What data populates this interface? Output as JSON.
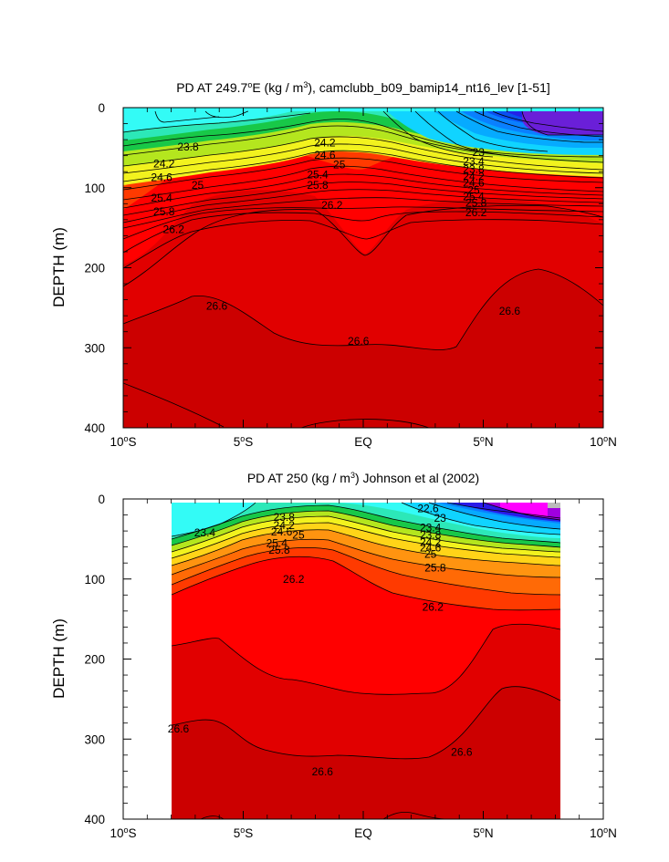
{
  "chart_data": [
    {
      "type": "contour",
      "title": "PD AT 249.7°E (kg / m³), camclubb_b09_bamip14_nt16_lev [1-51]",
      "title_parts": {
        "pre": "PD AT 249.7",
        "sup1": "o",
        "mid": "E (kg / m",
        "sup2": "3",
        "post": "), camclubb_b09_bamip14_nt16_lev [1-51]"
      },
      "xlabel": "",
      "ylabel": "DEPTH (m)",
      "x_ticks": [
        {
          "value": -10,
          "label_num": "10",
          "label_sup": "o",
          "label_hem": "S"
        },
        {
          "value": -5,
          "label_num": "5",
          "label_sup": "o",
          "label_hem": "S"
        },
        {
          "value": 0,
          "label_num": "EQ",
          "label_sup": "",
          "label_hem": ""
        },
        {
          "value": 5,
          "label_num": "5",
          "label_sup": "o",
          "label_hem": "N"
        },
        {
          "value": 10,
          "label_num": "10",
          "label_sup": "o",
          "label_hem": "N"
        }
      ],
      "y_ticks": [
        {
          "value": 0,
          "label": "0"
        },
        {
          "value": 100,
          "label": "100"
        },
        {
          "value": 200,
          "label": "200"
        },
        {
          "value": 300,
          "label": "300"
        },
        {
          "value": 400,
          "label": "400"
        }
      ],
      "xlim": [
        -10,
        10
      ],
      "ylim": [
        0,
        400
      ],
      "data_xlim": [
        -10,
        10
      ],
      "contour_levels": [
        22.6,
        22.8,
        23.0,
        23.2,
        23.4,
        23.6,
        23.8,
        24.0,
        24.2,
        24.4,
        24.6,
        24.8,
        25.0,
        25.2,
        25.4,
        25.6,
        25.8,
        26.0,
        26.2,
        26.4,
        26.6,
        26.8
      ],
      "fill_colors": [
        "#6a1fd8",
        "#2222e8",
        "#0a50f0",
        "#0a80ff",
        "#06aaff",
        "#10d4ff",
        "#33fbf6",
        "#2ce8b8",
        "#1ed780",
        "#18c848",
        "#5fd22a",
        "#b4e61e",
        "#f2f21e",
        "#ffd418",
        "#ffb414",
        "#ff9410",
        "#ff7408",
        "#ff5404",
        "#ff2a00",
        "#ff0000",
        "#e10000",
        "#cc0000"
      ],
      "labels": [
        {
          "text": "23.8",
          "x": -7.3,
          "y": 49
        },
        {
          "text": "24.2",
          "x": -8.3,
          "y": 70
        },
        {
          "text": "24.6",
          "x": -8.4,
          "y": 87
        },
        {
          "text": "25",
          "x": -6.9,
          "y": 97
        },
        {
          "text": "25.4",
          "x": -8.4,
          "y": 113
        },
        {
          "text": "25.8",
          "x": -8.3,
          "y": 130
        },
        {
          "text": "26.2",
          "x": -7.9,
          "y": 152
        },
        {
          "text": "24.2",
          "x": -1.6,
          "y": 44
        },
        {
          "text": "24.6",
          "x": -1.6,
          "y": 59
        },
        {
          "text": "25",
          "x": -1.0,
          "y": 71
        },
        {
          "text": "25.4",
          "x": -1.9,
          "y": 84
        },
        {
          "text": "25.8",
          "x": -1.9,
          "y": 97
        },
        {
          "text": "26.2",
          "x": -1.3,
          "y": 122
        },
        {
          "text": "23",
          "x": 4.8,
          "y": 56
        },
        {
          "text": "23.4",
          "x": 4.6,
          "y": 67
        },
        {
          "text": "23.8",
          "x": 4.6,
          "y": 77
        },
        {
          "text": "24.2",
          "x": 4.6,
          "y": 86
        },
        {
          "text": "24.6",
          "x": 4.6,
          "y": 94
        },
        {
          "text": "25",
          "x": 4.6,
          "y": 103
        },
        {
          "text": "25.4",
          "x": 4.6,
          "y": 111
        },
        {
          "text": "25.8",
          "x": 4.7,
          "y": 119
        },
        {
          "text": "26.2",
          "x": 4.7,
          "y": 131
        },
        {
          "text": "26.6",
          "x": -6.1,
          "y": 248
        },
        {
          "text": "26.6",
          "x": -0.2,
          "y": 292
        },
        {
          "text": "26.6",
          "x": 6.1,
          "y": 254
        }
      ]
    },
    {
      "type": "contour",
      "title": "PD AT 250 (kg / m³) Johnson et al (2002)",
      "title_parts": {
        "pre": "PD AT 250 (kg / m",
        "sup1": "3",
        "mid": ") Johnson et al (2002)",
        "sup2": "",
        "post": ""
      },
      "xlabel": "",
      "ylabel": "DEPTH (m)",
      "x_ticks": [
        {
          "value": -10,
          "label_num": "10",
          "label_sup": "o",
          "label_hem": "S"
        },
        {
          "value": -5,
          "label_num": "5",
          "label_sup": "o",
          "label_hem": "S"
        },
        {
          "value": 0,
          "label_num": "EQ",
          "label_sup": "",
          "label_hem": ""
        },
        {
          "value": 5,
          "label_num": "5",
          "label_sup": "o",
          "label_hem": "N"
        },
        {
          "value": 10,
          "label_num": "10",
          "label_sup": "o",
          "label_hem": "N"
        }
      ],
      "y_ticks": [
        {
          "value": 0,
          "label": "0"
        },
        {
          "value": 100,
          "label": "100"
        },
        {
          "value": 200,
          "label": "200"
        },
        {
          "value": 300,
          "label": "300"
        },
        {
          "value": 400,
          "label": "400"
        }
      ],
      "xlim": [
        -10,
        10
      ],
      "ylim": [
        0,
        400
      ],
      "data_xlim": [
        -8,
        8.2
      ],
      "contour_levels": [
        21.0,
        22.6,
        22.8,
        23.0,
        23.2,
        23.4,
        23.6,
        23.8,
        24.0,
        24.2,
        24.4,
        24.6,
        24.8,
        25.0,
        25.2,
        25.4,
        25.6,
        25.8,
        26.0,
        26.2,
        26.4,
        26.6,
        26.8
      ],
      "fill_colors": [
        "#ff00ff",
        "#a000e0",
        "#2a1ae8",
        "#0a50f0",
        "#0a80ff",
        "#06aaff",
        "#10d4ff",
        "#33fbf6",
        "#2ce8b8",
        "#1ed780",
        "#18c848",
        "#5fd22a",
        "#b4e61e",
        "#f2f21e",
        "#ffd418",
        "#ffb414",
        "#ff9410",
        "#ff7408",
        "#ff5404",
        "#ff2a00",
        "#ff0000",
        "#e10000",
        "#cc0000"
      ],
      "labels": [
        {
          "text": "23.4",
          "x": -6.6,
          "y": 42
        },
        {
          "text": "23.8",
          "x": -3.3,
          "y": 23
        },
        {
          "text": "24.2",
          "x": -3.3,
          "y": 33
        },
        {
          "text": "24.6",
          "x": -3.4,
          "y": 41
        },
        {
          "text": "25",
          "x": -2.7,
          "y": 45
        },
        {
          "text": "25.4",
          "x": -3.6,
          "y": 55
        },
        {
          "text": "25.8",
          "x": -3.5,
          "y": 64
        },
        {
          "text": "26.2",
          "x": -2.9,
          "y": 100
        },
        {
          "text": "22.6",
          "x": 2.7,
          "y": 12
        },
        {
          "text": "23",
          "x": 3.2,
          "y": 24
        },
        {
          "text": "23.4",
          "x": 2.8,
          "y": 36
        },
        {
          "text": "23.8",
          "x": 2.8,
          "y": 45
        },
        {
          "text": "24.2",
          "x": 2.8,
          "y": 54
        },
        {
          "text": "24.6",
          "x": 2.8,
          "y": 61
        },
        {
          "text": "25",
          "x": 2.8,
          "y": 69
        },
        {
          "text": "25.8",
          "x": 3.0,
          "y": 86
        },
        {
          "text": "26.2",
          "x": 2.9,
          "y": 135
        },
        {
          "text": "26.6",
          "x": -7.7,
          "y": 287
        },
        {
          "text": "26.6",
          "x": -1.7,
          "y": 341
        },
        {
          "text": "26.6",
          "x": 4.1,
          "y": 316
        }
      ]
    }
  ]
}
